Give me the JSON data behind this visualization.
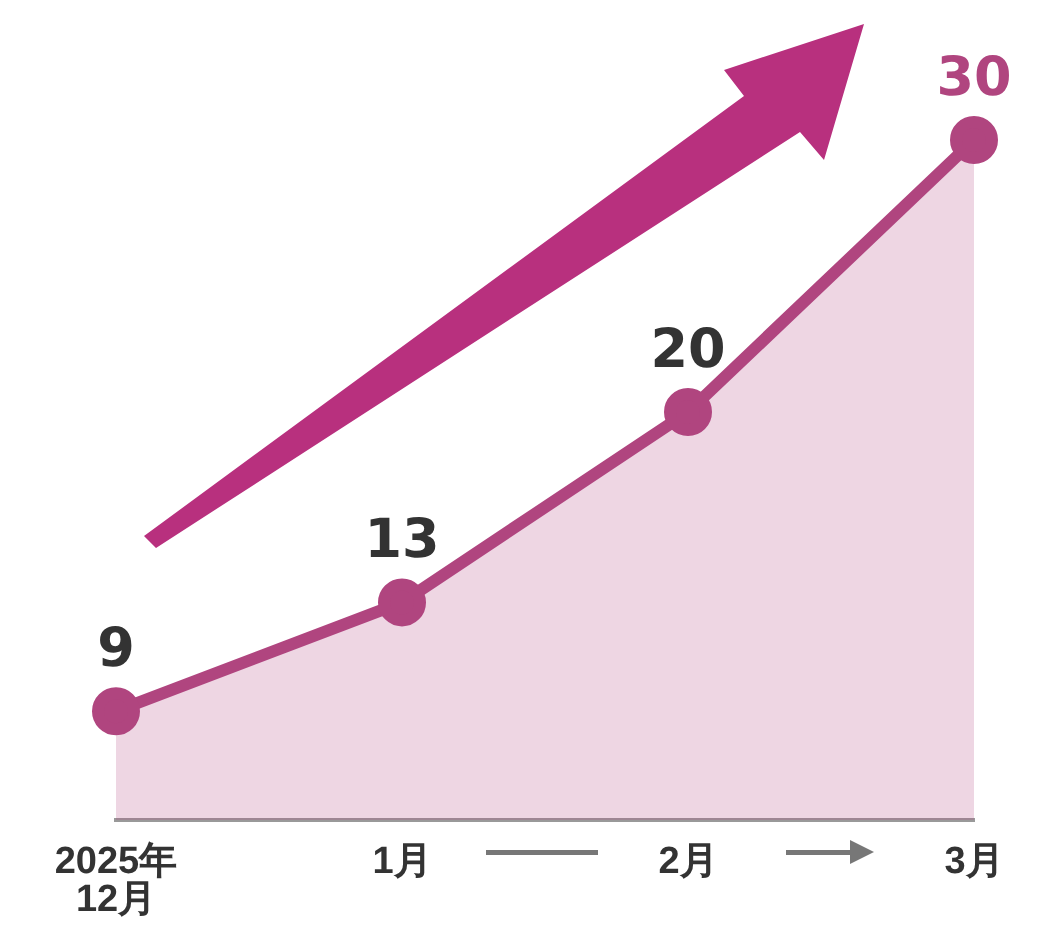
{
  "chart_data": {
    "type": "area",
    "categories": [
      "2025年\n12月",
      "1月",
      "2月",
      "3月"
    ],
    "series": [
      {
        "color": "#b0457f",
        "values": [
          9,
          13,
          20,
          30
        ]
      }
    ],
    "data_labels": true,
    "tick_labels": "x",
    "grid": false,
    "legend": false,
    "marker": "circle"
  }
}
